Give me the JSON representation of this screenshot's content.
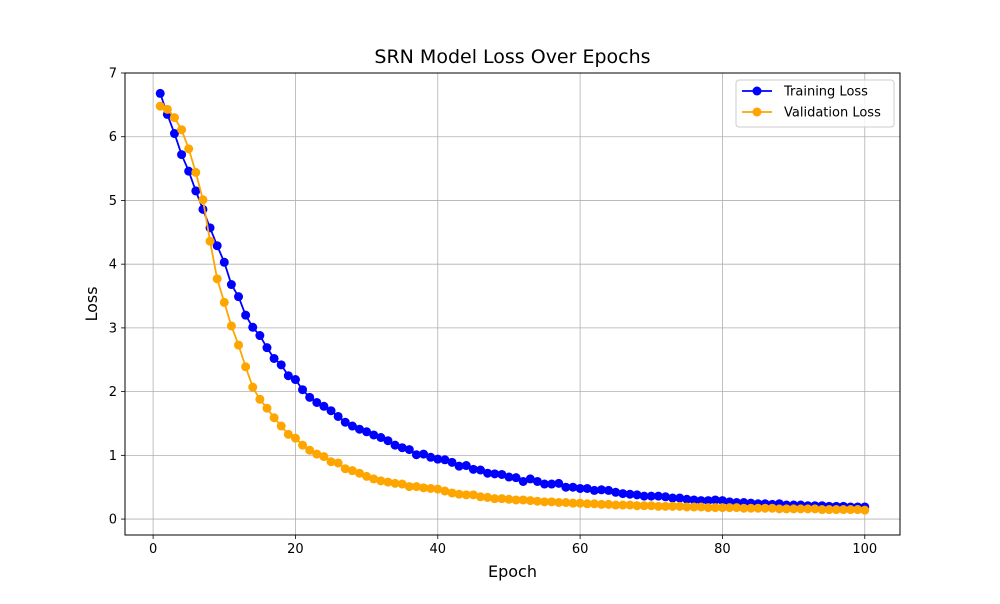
{
  "chart_data": {
    "type": "line",
    "title": "SRN Model Loss Over Epochs",
    "xlabel": "Epoch",
    "ylabel": "Loss",
    "xlim": [
      -3.95,
      104.95
    ],
    "ylim": [
      -0.25,
      7.0
    ],
    "xticks": [
      0,
      20,
      40,
      60,
      80,
      100
    ],
    "yticks": [
      0,
      1,
      2,
      3,
      4,
      5,
      6,
      7
    ],
    "grid": true,
    "legend_position": "top-right",
    "x": [
      1,
      2,
      3,
      4,
      5,
      6,
      7,
      8,
      9,
      10,
      11,
      12,
      13,
      14,
      15,
      16,
      17,
      18,
      19,
      20,
      21,
      22,
      23,
      24,
      25,
      26,
      27,
      28,
      29,
      30,
      31,
      32,
      33,
      34,
      35,
      36,
      37,
      38,
      39,
      40,
      41,
      42,
      43,
      44,
      45,
      46,
      47,
      48,
      49,
      50,
      51,
      52,
      53,
      54,
      55,
      56,
      57,
      58,
      59,
      60,
      61,
      62,
      63,
      64,
      65,
      66,
      67,
      68,
      69,
      70,
      71,
      72,
      73,
      74,
      75,
      76,
      77,
      78,
      79,
      80,
      81,
      82,
      83,
      84,
      85,
      86,
      87,
      88,
      89,
      90,
      91,
      92,
      93,
      94,
      95,
      96,
      97,
      98,
      99,
      100
    ],
    "series": [
      {
        "name": "Training Loss",
        "color": "#0000ff",
        "values": [
          6.68,
          6.35,
          6.05,
          5.72,
          5.46,
          5.15,
          4.86,
          4.57,
          4.29,
          4.03,
          3.68,
          3.49,
          3.2,
          3.01,
          2.88,
          2.69,
          2.52,
          2.42,
          2.25,
          2.19,
          2.03,
          1.91,
          1.83,
          1.77,
          1.7,
          1.61,
          1.52,
          1.46,
          1.41,
          1.37,
          1.32,
          1.28,
          1.23,
          1.16,
          1.12,
          1.09,
          1.01,
          1.02,
          0.97,
          0.94,
          0.93,
          0.89,
          0.83,
          0.84,
          0.78,
          0.77,
          0.72,
          0.71,
          0.7,
          0.66,
          0.65,
          0.59,
          0.63,
          0.59,
          0.55,
          0.55,
          0.56,
          0.5,
          0.5,
          0.48,
          0.48,
          0.45,
          0.46,
          0.45,
          0.42,
          0.4,
          0.39,
          0.38,
          0.36,
          0.36,
          0.36,
          0.35,
          0.33,
          0.33,
          0.31,
          0.3,
          0.29,
          0.29,
          0.3,
          0.29,
          0.27,
          0.26,
          0.26,
          0.25,
          0.24,
          0.24,
          0.23,
          0.24,
          0.22,
          0.22,
          0.22,
          0.21,
          0.21,
          0.21,
          0.2,
          0.2,
          0.2,
          0.19,
          0.19,
          0.19
        ]
      },
      {
        "name": "Validation Loss",
        "color": "#ffa500",
        "values": [
          6.48,
          6.43,
          6.3,
          6.11,
          5.81,
          5.44,
          5.01,
          4.36,
          3.77,
          3.4,
          3.03,
          2.73,
          2.39,
          2.07,
          1.88,
          1.74,
          1.59,
          1.46,
          1.33,
          1.27,
          1.16,
          1.08,
          1.02,
          0.98,
          0.9,
          0.88,
          0.79,
          0.76,
          0.72,
          0.67,
          0.63,
          0.6,
          0.58,
          0.56,
          0.55,
          0.51,
          0.51,
          0.49,
          0.48,
          0.47,
          0.44,
          0.41,
          0.39,
          0.38,
          0.38,
          0.35,
          0.34,
          0.32,
          0.32,
          0.31,
          0.3,
          0.3,
          0.29,
          0.28,
          0.27,
          0.27,
          0.26,
          0.26,
          0.25,
          0.25,
          0.24,
          0.24,
          0.23,
          0.23,
          0.22,
          0.22,
          0.22,
          0.21,
          0.21,
          0.21,
          0.2,
          0.2,
          0.2,
          0.2,
          0.19,
          0.19,
          0.19,
          0.18,
          0.18,
          0.18,
          0.18,
          0.18,
          0.17,
          0.17,
          0.17,
          0.17,
          0.17,
          0.16,
          0.16,
          0.16,
          0.16,
          0.16,
          0.16,
          0.15,
          0.15,
          0.15,
          0.15,
          0.15,
          0.15,
          0.14
        ]
      }
    ]
  }
}
